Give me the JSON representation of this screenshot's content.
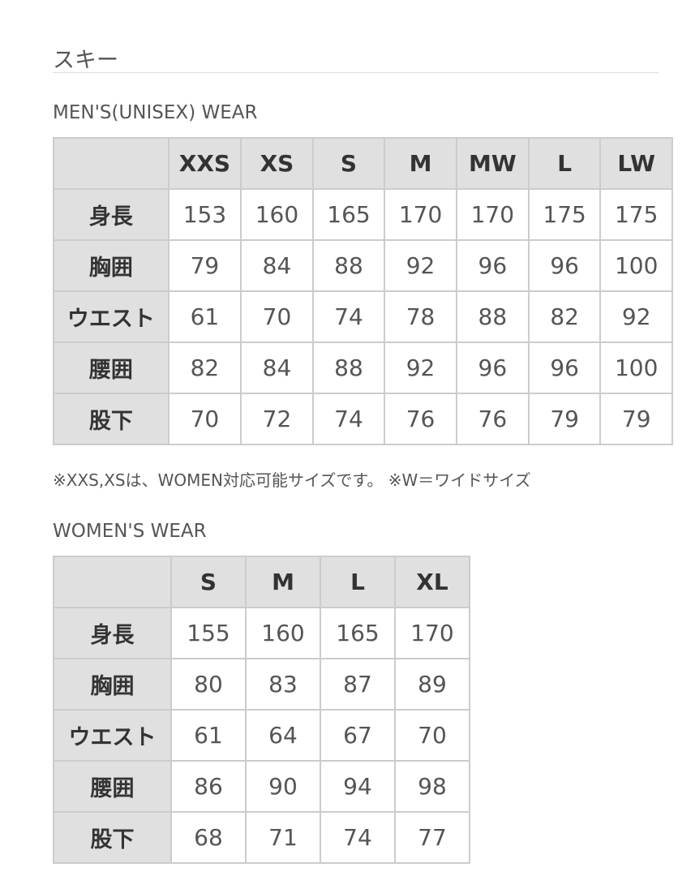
{
  "title": "スキー",
  "mens": {
    "heading": "MEN'S(UNISEX) WEAR",
    "sizes": [
      "XXS",
      "XS",
      "S",
      "M",
      "MW",
      "L",
      "LW"
    ],
    "rows": [
      {
        "label": "身長",
        "values": [
          "153",
          "160",
          "165",
          "170",
          "170",
          "175",
          "175"
        ]
      },
      {
        "label": "胸囲",
        "values": [
          "79",
          "84",
          "88",
          "92",
          "96",
          "96",
          "100"
        ]
      },
      {
        "label": "ウエスト",
        "values": [
          "61",
          "70",
          "74",
          "78",
          "88",
          "82",
          "92"
        ]
      },
      {
        "label": "腰囲",
        "values": [
          "82",
          "84",
          "88",
          "92",
          "96",
          "96",
          "100"
        ]
      },
      {
        "label": "股下",
        "values": [
          "70",
          "72",
          "74",
          "76",
          "76",
          "79",
          "79"
        ]
      }
    ]
  },
  "note": "※XXS,XSは、WOMEN対応可能サイズです。 ※W＝ワイドサイズ",
  "womens": {
    "heading": "WOMEN'S WEAR",
    "sizes": [
      "S",
      "M",
      "L",
      "XL"
    ],
    "rows": [
      {
        "label": "身長",
        "values": [
          "155",
          "160",
          "165",
          "170"
        ]
      },
      {
        "label": "胸囲",
        "values": [
          "80",
          "83",
          "87",
          "89"
        ]
      },
      {
        "label": "ウエスト",
        "values": [
          "61",
          "64",
          "67",
          "70"
        ]
      },
      {
        "label": "腰囲",
        "values": [
          "86",
          "90",
          "94",
          "98"
        ]
      },
      {
        "label": "股下",
        "values": [
          "68",
          "71",
          "74",
          "77"
        ]
      }
    ]
  }
}
